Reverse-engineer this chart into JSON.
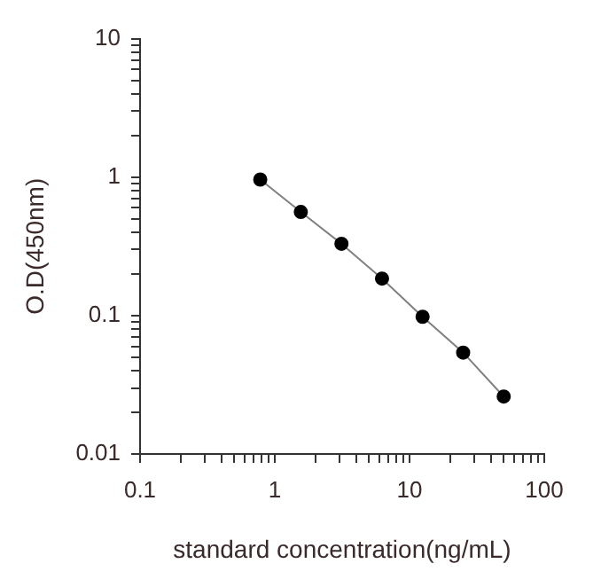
{
  "chart_data": {
    "type": "line",
    "xlabel": "standard concentration(ng/mL)",
    "ylabel": "O.D(450nm)",
    "log": "xy",
    "marker": "circle",
    "grid": false,
    "legend": false,
    "x": [
      0.78,
      1.56,
      3.125,
      6.25,
      12.5,
      25,
      50
    ],
    "series": [
      {
        "color": "#000000",
        "values": [
          0.96,
          0.56,
          0.33,
          0.185,
          0.098,
          0.054,
          0.026
        ]
      }
    ],
    "xlim": [
      0.1,
      100
    ],
    "ylim": [
      0.01,
      10
    ],
    "xticks": [
      0.1,
      {
        "value": 0.2,
        "label": null
      },
      {
        "value": 0.3,
        "label": null
      },
      {
        "value": 0.4,
        "label": null
      },
      {
        "value": 0.5,
        "label": null
      },
      {
        "value": 0.6,
        "label": null
      },
      {
        "value": 0.7,
        "label": null
      },
      {
        "value": 0.8,
        "label": null
      },
      {
        "value": 0.9,
        "label": null
      },
      1,
      {
        "value": 2,
        "label": null
      },
      {
        "value": 3,
        "label": null
      },
      {
        "value": 4,
        "label": null
      },
      {
        "value": 5,
        "label": null
      },
      {
        "value": 6,
        "label": null
      },
      {
        "value": 7,
        "label": null
      },
      {
        "value": 8,
        "label": null
      },
      {
        "value": 9,
        "label": null
      },
      10,
      {
        "value": 20,
        "label": null
      },
      {
        "value": 30,
        "label": null
      },
      {
        "value": 40,
        "label": null
      },
      {
        "value": 50,
        "label": null
      },
      {
        "value": 60,
        "label": null
      },
      {
        "value": 70,
        "label": null
      },
      {
        "value": 80,
        "label": null
      },
      {
        "value": 90,
        "label": null
      },
      100
    ],
    "yticks": [
      0.01,
      {
        "value": 0.02,
        "label": null
      },
      {
        "value": 0.03,
        "label": null
      },
      {
        "value": 0.04,
        "label": null
      },
      {
        "value": 0.05,
        "label": null
      },
      {
        "value": 0.06,
        "label": null
      },
      {
        "value": 0.07,
        "label": null
      },
      {
        "value": 0.08,
        "label": null
      },
      {
        "value": 0.09,
        "label": null
      },
      0.1,
      {
        "value": 0.2,
        "label": null
      },
      {
        "value": 0.3,
        "label": null
      },
      {
        "value": 0.4,
        "label": null
      },
      {
        "value": 0.5,
        "label": null
      },
      {
        "value": 0.6,
        "label": null
      },
      {
        "value": 0.7,
        "label": null
      },
      {
        "value": 0.8,
        "label": null
      },
      {
        "value": 0.9,
        "label": null
      },
      1,
      {
        "value": 2,
        "label": null
      },
      {
        "value": 3,
        "label": null
      },
      {
        "value": 4,
        "label": null
      },
      {
        "value": 5,
        "label": null
      },
      {
        "value": 6,
        "label": null
      },
      {
        "value": 7,
        "label": null
      },
      {
        "value": 8,
        "label": null
      },
      {
        "value": 9,
        "label": null
      },
      10
    ]
  }
}
